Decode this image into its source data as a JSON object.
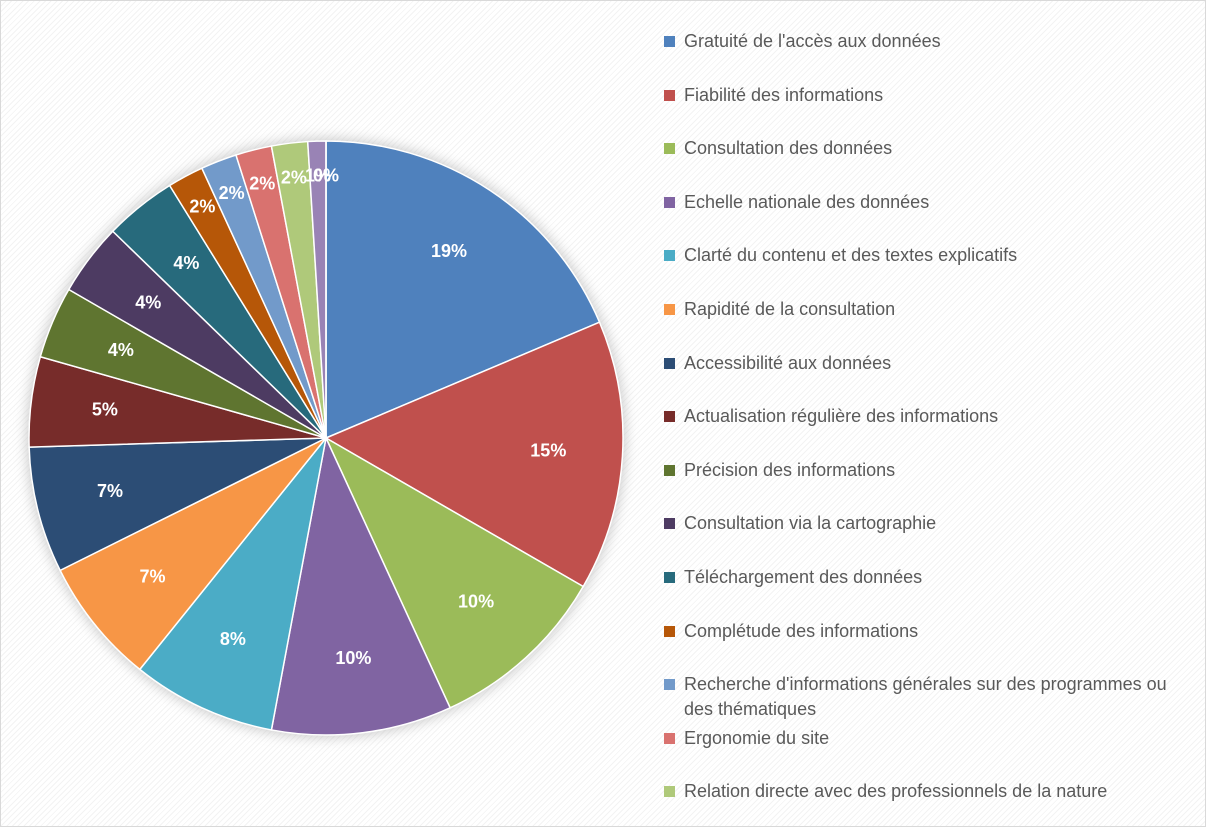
{
  "chart_data": {
    "type": "pie",
    "categories": [
      "Gratuité de l'accès aux données",
      "Fiabilité des informations",
      "Consultation des données",
      "Echelle nationale des données",
      "Clarté du contenu et des textes explicatifs",
      "Rapidité de la consultation",
      "Accessibilité aux données",
      "Actualisation régulière des informations",
      "Précision des informations",
      "Consultation via la cartographie",
      "Téléchargement des données",
      "Complétude des informations",
      "Recherche d'informations générales sur des programmes ou des thématiques",
      "Ergonomie du site",
      "Relation directe avec des professionnels de la nature",
      null,
      null
    ],
    "values": [
      19,
      15,
      10,
      10,
      8,
      7,
      7,
      5,
      4,
      4,
      4,
      2,
      2,
      2,
      2,
      1,
      0
    ],
    "value_labels": [
      "19%",
      "15%",
      "10%",
      "10%",
      "8%",
      "7%",
      "7%",
      "5%",
      "4%",
      "4%",
      "4%",
      "2%",
      "2%",
      "2%",
      "2%",
      "1%",
      "0%"
    ],
    "colors": [
      "#4f81bd",
      "#c0504d",
      "#9bbb59",
      "#8064a2",
      "#4bacc6",
      "#f79646",
      "#2c4d75",
      "#772c2a",
      "#5f7530",
      "#4d3b62",
      "#276a7c",
      "#b65708",
      "#729aca",
      "#d9726f",
      "#afc97a",
      "#9983b5",
      "#6fbdd1"
    ],
    "legend": "right"
  }
}
